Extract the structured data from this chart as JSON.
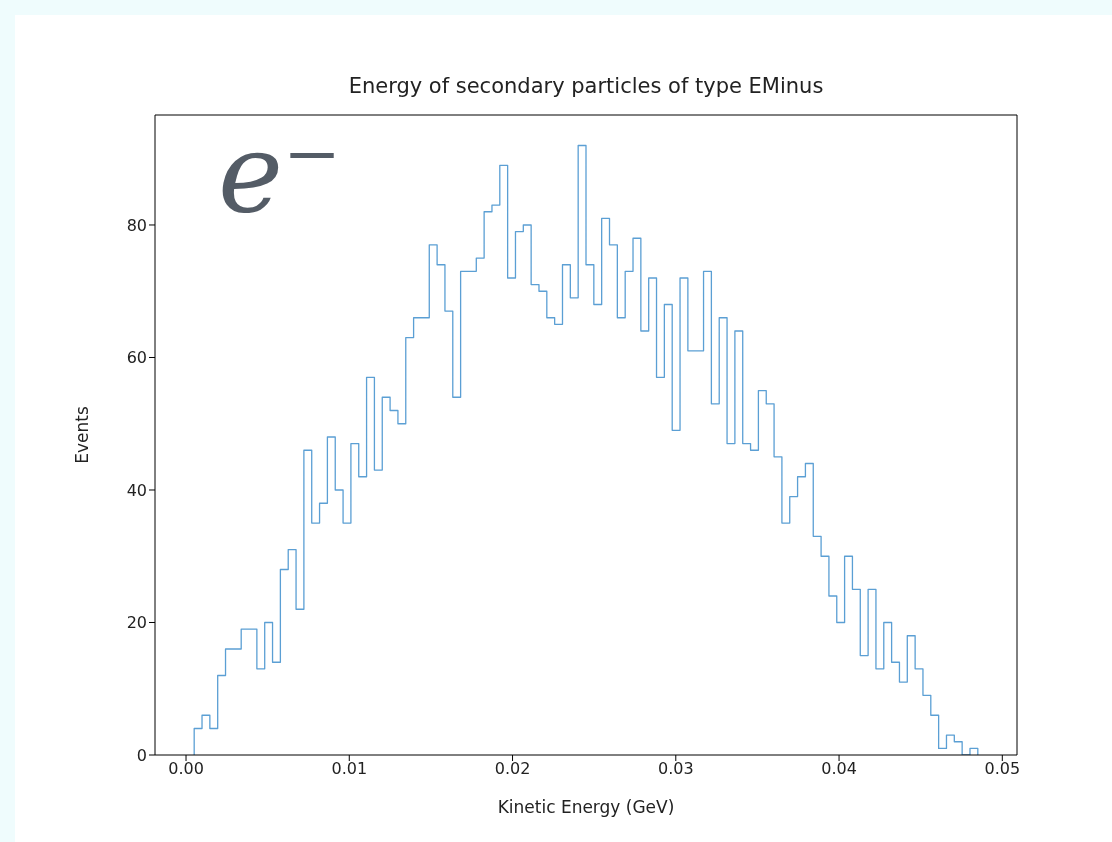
{
  "chart_data": {
    "type": "histogram",
    "title": "Energy of secondary particles of type EMinus",
    "xlabel": "Kinetic Energy (GeV)",
    "ylabel": "Events",
    "annotations": [
      "e⁻"
    ],
    "color": "#5b9fd4",
    "bins": [
      0.0005,
      0.00098,
      0.00146,
      0.00194,
      0.00242,
      0.0029,
      0.00338,
      0.00386,
      0.00434,
      0.00482,
      0.0053,
      0.00578,
      0.00626,
      0.00674,
      0.00722,
      0.0077,
      0.00818,
      0.00866,
      0.00914,
      0.00962,
      0.0101,
      0.01058,
      0.01106,
      0.01154,
      0.01202,
      0.0125,
      0.01298,
      0.01346,
      0.01394,
      0.01442,
      0.0149,
      0.01538,
      0.01586,
      0.01634,
      0.01682,
      0.0173,
      0.01778,
      0.01826,
      0.01874,
      0.01922,
      0.0197,
      0.02018,
      0.02066,
      0.02114,
      0.02162,
      0.0221,
      0.02258,
      0.02306,
      0.02354,
      0.02402,
      0.0245,
      0.02498,
      0.02546,
      0.02594,
      0.02642,
      0.0269,
      0.02738,
      0.02786,
      0.02834,
      0.02882,
      0.0293,
      0.02978,
      0.03026,
      0.03074,
      0.03122,
      0.0317,
      0.03218,
      0.03266,
      0.03314,
      0.03362,
      0.0341,
      0.03458,
      0.03506,
      0.03554,
      0.03602,
      0.0365,
      0.03698,
      0.03746,
      0.03794,
      0.03842,
      0.0389,
      0.03938,
      0.03986,
      0.04034,
      0.04082,
      0.0413,
      0.04178,
      0.04226,
      0.04274,
      0.04322,
      0.0437,
      0.04418,
      0.04466,
      0.04514,
      0.04562,
      0.0461,
      0.04658,
      0.04706,
      0.04754,
      0.04802,
      0.0485
    ],
    "values": [
      4,
      6,
      4,
      12,
      16,
      16,
      19,
      19,
      13,
      20,
      14,
      28,
      31,
      22,
      46,
      35,
      38,
      48,
      40,
      35,
      47,
      42,
      57,
      43,
      54,
      52,
      50,
      63,
      66,
      66,
      77,
      74,
      67,
      54,
      73,
      73,
      75,
      82,
      83,
      89,
      72,
      79,
      80,
      71,
      70,
      66,
      65,
      74,
      69,
      92,
      74,
      68,
      81,
      77,
      66,
      73,
      78,
      64,
      72,
      57,
      68,
      49,
      72,
      61,
      61,
      73,
      53,
      66,
      47,
      64,
      47,
      46,
      55,
      53,
      45,
      35,
      39,
      42,
      44,
      33,
      30,
      24,
      20,
      30,
      25,
      15,
      25,
      13,
      20,
      14,
      11,
      18,
      13,
      9,
      6,
      1,
      3,
      2,
      0,
      1
    ],
    "xlim": [
      -0.0019,
      0.0509
    ],
    "xticks": [
      {
        "value": 0,
        "label": "0.00"
      },
      {
        "value": 0.01,
        "label": "0.01"
      },
      {
        "value": 0.02,
        "label": "0.02"
      },
      {
        "value": 0.03,
        "label": "0.03"
      },
      {
        "value": 0.04,
        "label": "0.04"
      },
      {
        "value": 0.05,
        "label": "0.05"
      }
    ],
    "ylim": [
      0,
      96.6
    ],
    "yticks": [
      0,
      20,
      40,
      60,
      80
    ]
  }
}
